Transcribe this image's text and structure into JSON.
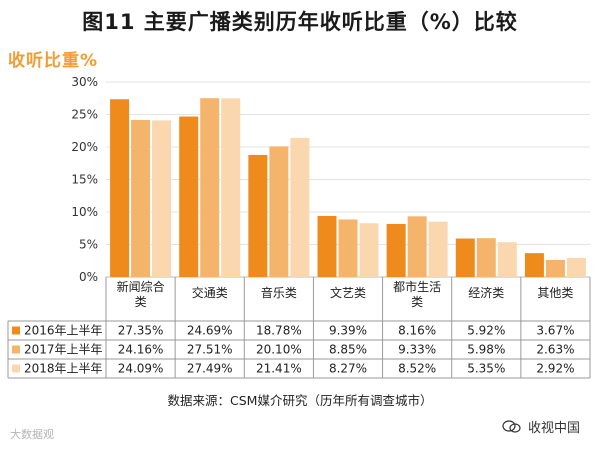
{
  "title": "图11 主要广播类别历年收听比重（%）比较",
  "source": "数据来源：CSM媒介研究（历年所有调查城市）",
  "watermark_left": "大数据观",
  "watermark_right": "收视中国",
  "chart_data": {
    "type": "bar",
    "title": "图11 主要广播类别历年收听比重（%）比较",
    "ylabel": "收听比重%",
    "ylim": [
      0,
      30
    ],
    "yticks": [
      "0%",
      "5%",
      "10%",
      "15%",
      "20%",
      "25%",
      "30%"
    ],
    "yticks_values": [
      0,
      5,
      10,
      15,
      20,
      25,
      30
    ],
    "grid": true,
    "legend": "table-left",
    "categories": [
      [
        "新闻综合",
        "类"
      ],
      [
        "交通类"
      ],
      [
        "音乐类"
      ],
      [
        "文艺类"
      ],
      [
        "都市生活",
        "类"
      ],
      [
        "经济类"
      ],
      [
        "其他类"
      ]
    ],
    "series": [
      {
        "name": "2016年上半年",
        "color": "#ef8b1d",
        "values": [
          27.35,
          24.69,
          18.78,
          9.39,
          8.16,
          5.92,
          3.67
        ],
        "labels": [
          "27.35%",
          "24.69%",
          "18.78%",
          "9.39%",
          "8.16%",
          "5.92%",
          "3.67%"
        ]
      },
      {
        "name": "2017年上半年",
        "color": "#f5b46c",
        "values": [
          24.16,
          27.51,
          20.1,
          8.85,
          9.33,
          5.98,
          2.63
        ],
        "labels": [
          "24.16%",
          "27.51%",
          "20.10%",
          "8.85%",
          "9.33%",
          "5.98%",
          "2.63%"
        ]
      },
      {
        "name": "2018年上半年",
        "color": "#fad7ae",
        "values": [
          24.09,
          27.49,
          21.41,
          8.27,
          8.52,
          5.35,
          2.92
        ],
        "labels": [
          "24.09%",
          "27.49%",
          "21.41%",
          "8.27%",
          "8.52%",
          "5.35%",
          "2.92%"
        ]
      }
    ]
  }
}
